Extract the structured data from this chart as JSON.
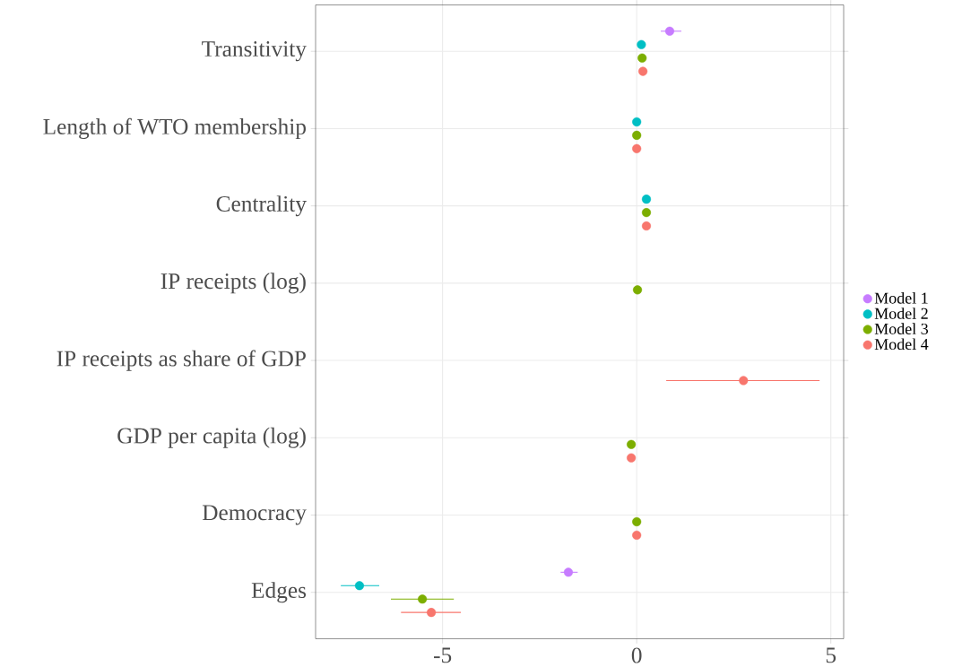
{
  "chart_data": {
    "type": "scatter",
    "orientation": "horizontal",
    "categories": [
      "Transitivity",
      "Length of WTO membership",
      "Centrality",
      "IP receipts (log)",
      "IP receipts as share of GDP",
      "GDP per capita (log)",
      "Democracy",
      "Edges"
    ],
    "series": [
      {
        "name": "Model 1",
        "color": "#c77cff",
        "values": [
          0.85,
          null,
          null,
          null,
          null,
          null,
          null,
          -1.76
        ],
        "errors": [
          [
            0.62,
            1.15
          ],
          null,
          null,
          null,
          null,
          null,
          null,
          [
            -1.96,
            -1.52
          ]
        ]
      },
      {
        "name": "Model 2",
        "color": "#00bfc4",
        "values": [
          0.12,
          0.0,
          0.25,
          null,
          null,
          null,
          null,
          -7.14
        ],
        "errors": [
          null,
          null,
          null,
          null,
          null,
          null,
          null,
          [
            -7.62,
            -6.63
          ]
        ]
      },
      {
        "name": "Model 3",
        "color": "#7cae00",
        "values": [
          0.14,
          0.0,
          0.25,
          0.02,
          null,
          -0.14,
          0.0,
          -5.52
        ],
        "errors": [
          null,
          null,
          null,
          null,
          null,
          null,
          null,
          [
            -6.33,
            -4.71
          ]
        ]
      },
      {
        "name": "Model 4",
        "color": "#f8766d",
        "values": [
          0.16,
          0.0,
          0.25,
          null,
          2.75,
          -0.14,
          0.0,
          -5.29
        ],
        "errors": [
          null,
          null,
          null,
          null,
          [
            0.76,
            4.71
          ],
          null,
          null,
          [
            -6.07,
            -4.53
          ]
        ]
      }
    ],
    "xlim": [
      -8.27,
      5.33
    ],
    "xticks": [
      -5,
      0,
      5
    ],
    "grid": true,
    "legend": "right"
  }
}
